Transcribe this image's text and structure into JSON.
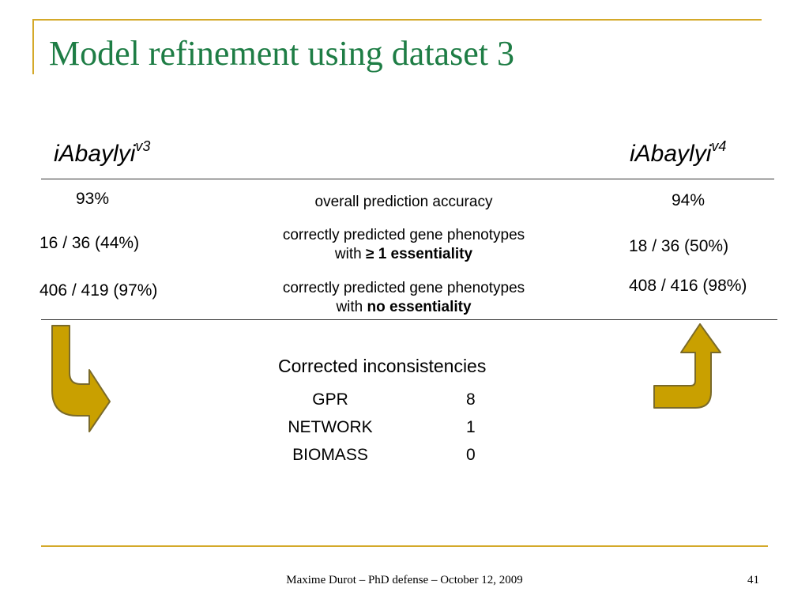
{
  "slide": {
    "title": "Model refinement using dataset 3",
    "models": {
      "left": {
        "name": "iAbaylyi",
        "version": "v3"
      },
      "right": {
        "name": "iAbaylyi",
        "version": "v4"
      }
    },
    "rows": [
      {
        "left": "93%",
        "right": "94%",
        "desc_line1": "overall prediction accuracy",
        "desc_line2_prefix": "",
        "desc_line2_bold": ""
      },
      {
        "left": "16 / 36 (44%)",
        "right": "18 / 36 (50%)",
        "desc_line1": "correctly predicted gene phenotypes",
        "desc_line2_prefix": "with ",
        "desc_line2_bold": "≥ 1 essentiality"
      },
      {
        "left": "406 / 419 (97%)",
        "right": "408 / 416 (98%)",
        "desc_line1": "correctly predicted gene phenotypes",
        "desc_line2_prefix": "with ",
        "desc_line2_bold": "no essentiality"
      }
    ],
    "corrections": {
      "title": "Corrected inconsistencies",
      "items": [
        {
          "label": "GPR",
          "count": "8"
        },
        {
          "label": "NETWORK",
          "count": "1"
        },
        {
          "label": "BIOMASS",
          "count": "0"
        }
      ]
    },
    "footer": "Maxime Durot – PhD defense – October 12, 2009",
    "page_number": "41",
    "colors": {
      "title": "#1e7d45",
      "accent": "#d4a92a",
      "arrow_fill": "#c9a000",
      "arrow_stroke": "#7a6a2a"
    }
  }
}
